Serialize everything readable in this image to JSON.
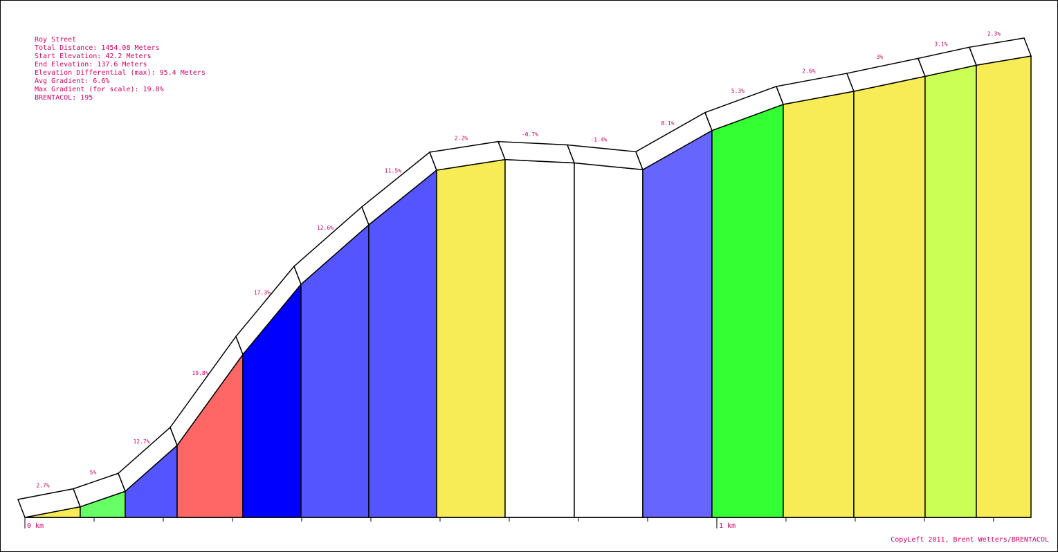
{
  "info": {
    "route_name": "Roy Street",
    "total_distance": "Total Distance: 1454.08 Meters",
    "start_elevation": "Start Elevation: 42.2 Meters",
    "end_elevation": "End Elevation: 137.6 Meters",
    "elevation_differential": "Elevation Differential (max): 95.4 Meters",
    "avg_gradient": "Avg Gradient: 6.6%",
    "max_gradient": "Max Gradient (for scale): 19.8%",
    "brentacol": "BRENTACOL: 195"
  },
  "credit": "CopyLeft 2011, Brent Wetters/BRENTACOL",
  "chart_data": {
    "type": "area",
    "title": "Roy Street",
    "x_unit": "m",
    "y_unit": "m",
    "xlim": [
      0,
      1454.08
    ],
    "ylim": [
      42.2,
      137.6
    ],
    "x_tick_labels": [
      {
        "x": 0,
        "label": "0 km"
      },
      {
        "x": 1000,
        "label": "1 km"
      }
    ],
    "x_minor_tick_step": 100,
    "segments": [
      {
        "x0": 0,
        "x1": 80,
        "y0": 42.2,
        "y1": 44.4,
        "grade_label": "2.7%",
        "color": "#f7ec55"
      },
      {
        "x0": 80,
        "x1": 145,
        "y0": 44.4,
        "y1": 47.6,
        "grade_label": "5%",
        "color": "#66ff66"
      },
      {
        "x0": 145,
        "x1": 220,
        "y0": 47.6,
        "y1": 57.1,
        "grade_label": "12.7%",
        "color": "#5555ff"
      },
      {
        "x0": 220,
        "x1": 315,
        "y0": 57.1,
        "y1": 75.9,
        "grade_label": "19.8%",
        "color": "#ff6666"
      },
      {
        "x0": 315,
        "x1": 399,
        "y0": 75.9,
        "y1": 90.4,
        "grade_label": "17.3%",
        "color": "#0000ff"
      },
      {
        "x0": 399,
        "x1": 497,
        "y0": 90.4,
        "y1": 102.7,
        "grade_label": "12.6%",
        "color": "#5555ff"
      },
      {
        "x0": 497,
        "x1": 595,
        "y0": 102.7,
        "y1": 114.0,
        "grade_label": "11.5%",
        "color": "#5555ff"
      },
      {
        "x0": 595,
        "x1": 694,
        "y0": 114.0,
        "y1": 116.2,
        "grade_label": "2.2%",
        "color": "#f7ec55"
      },
      {
        "x0": 694,
        "x1": 794,
        "y0": 116.2,
        "y1": 115.5,
        "grade_label": "-0.7%",
        "color": "#ffffff"
      },
      {
        "x0": 794,
        "x1": 893,
        "y0": 115.5,
        "y1": 114.1,
        "grade_label": "-1.4%",
        "color": "#ffffff"
      },
      {
        "x0": 893,
        "x1": 993,
        "y0": 114.1,
        "y1": 122.2,
        "grade_label": "8.1%",
        "color": "#6666ff"
      },
      {
        "x0": 993,
        "x1": 1096,
        "y0": 122.2,
        "y1": 127.6,
        "grade_label": "5.3%",
        "color": "#33ff33"
      },
      {
        "x0": 1096,
        "x1": 1198,
        "y0": 127.6,
        "y1": 130.3,
        "grade_label": "2.6%",
        "color": "#f7ec55"
      },
      {
        "x0": 1198,
        "x1": 1301,
        "y0": 130.3,
        "y1": 133.4,
        "grade_label": "3%",
        "color": "#f7ec55"
      },
      {
        "x0": 1301,
        "x1": 1375,
        "y0": 133.4,
        "y1": 135.7,
        "grade_label": "3.1%",
        "color": "#ccff55"
      },
      {
        "x0": 1375,
        "x1": 1454.08,
        "y0": 135.7,
        "y1": 137.6,
        "grade_label": "2.3%",
        "color": "#f7ec55"
      }
    ]
  }
}
